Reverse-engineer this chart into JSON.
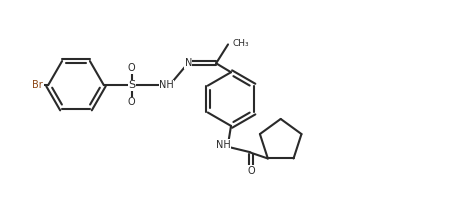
{
  "bg_color": "#ffffff",
  "bond_color": "#2a2a2a",
  "br_color": "#8B4513",
  "lw": 1.5,
  "fs": 7.0,
  "figsize": [
    4.65,
    2.2
  ],
  "dpi": 100,
  "xlim": [
    0,
    46.5
  ],
  "ylim": [
    0,
    22
  ]
}
